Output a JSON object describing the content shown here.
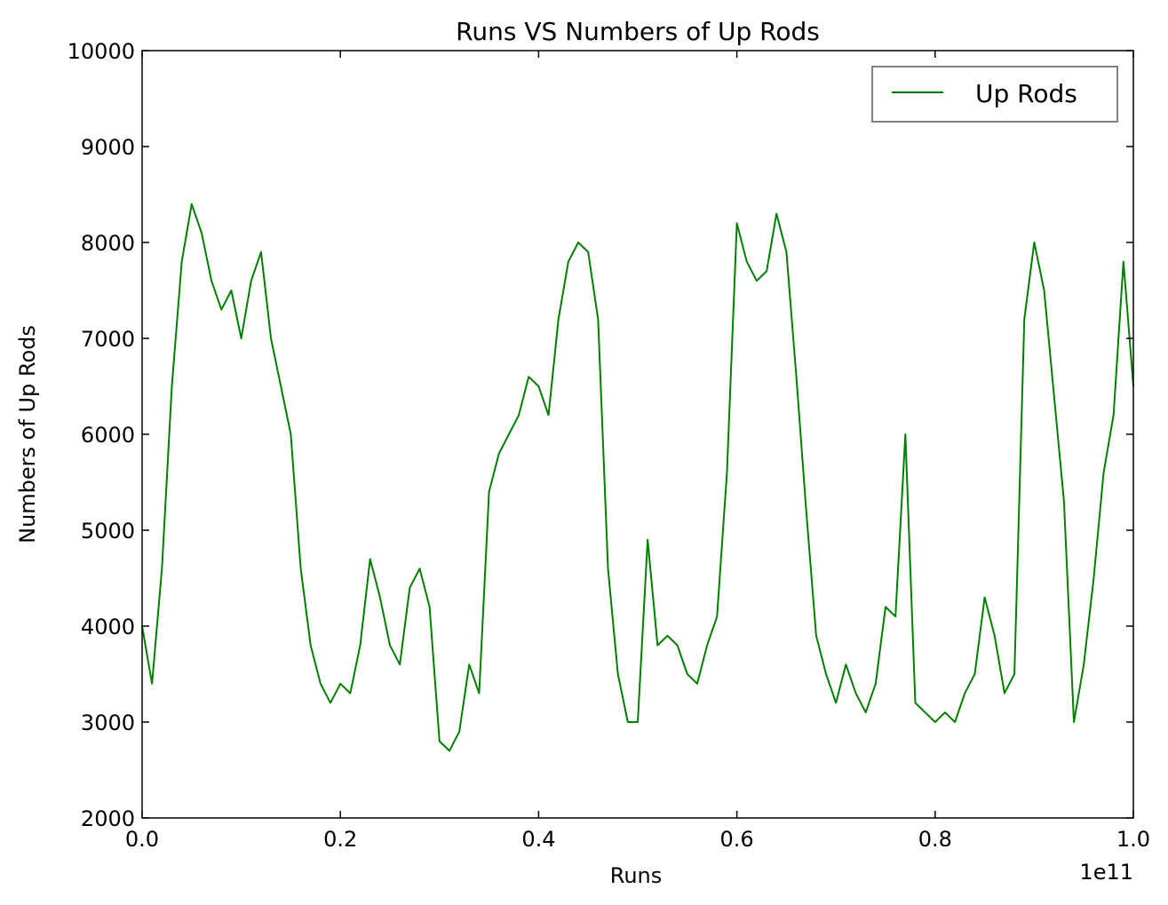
{
  "chart_data": {
    "type": "line",
    "title": "Runs VS Numbers of Up Rods",
    "xlabel": "Runs",
    "ylabel": "Numbers of Up Rods",
    "x_offset_text": "1e11",
    "xlim": [
      0.0,
      1.0
    ],
    "ylim": [
      2000,
      10000
    ],
    "x_ticks": [
      "0.0",
      "0.2",
      "0.4",
      "0.6",
      "0.8",
      "1.0"
    ],
    "y_ticks": [
      "2000",
      "3000",
      "4000",
      "5000",
      "6000",
      "7000",
      "8000",
      "9000",
      "10000"
    ],
    "grid": false,
    "legend_position": "top-right",
    "series": [
      {
        "name": "Up Rods",
        "color": "#008000",
        "x": [
          0.0,
          0.01,
          0.02,
          0.03,
          0.04,
          0.05,
          0.06,
          0.07,
          0.08,
          0.09,
          0.1,
          0.11,
          0.12,
          0.13,
          0.14,
          0.15,
          0.16,
          0.17,
          0.18,
          0.19,
          0.2,
          0.21,
          0.22,
          0.23,
          0.24,
          0.25,
          0.26,
          0.27,
          0.28,
          0.29,
          0.3,
          0.31,
          0.32,
          0.33,
          0.34,
          0.35,
          0.36,
          0.37,
          0.38,
          0.39,
          0.4,
          0.41,
          0.42,
          0.43,
          0.44,
          0.45,
          0.46,
          0.47,
          0.48,
          0.49,
          0.5,
          0.51,
          0.52,
          0.53,
          0.54,
          0.55,
          0.56,
          0.57,
          0.58,
          0.59,
          0.6,
          0.61,
          0.62,
          0.63,
          0.64,
          0.65,
          0.66,
          0.67,
          0.68,
          0.69,
          0.7,
          0.71,
          0.72,
          0.73,
          0.74,
          0.75,
          0.76,
          0.77,
          0.78,
          0.79,
          0.8,
          0.81,
          0.82,
          0.83,
          0.84,
          0.85,
          0.86,
          0.87,
          0.88,
          0.89,
          0.9,
          0.91,
          0.92,
          0.93,
          0.94,
          0.95,
          0.96,
          0.97,
          0.98,
          0.99,
          1.0
        ],
        "y": [
          4000,
          3400,
          4600,
          6500,
          7800,
          8400,
          8100,
          7600,
          7300,
          7500,
          7000,
          7600,
          7900,
          7000,
          6500,
          6000,
          4600,
          3800,
          3400,
          3200,
          3400,
          3300,
          3800,
          4700,
          4300,
          3800,
          3600,
          4400,
          4600,
          4200,
          2800,
          2700,
          2900,
          3600,
          3300,
          5400,
          5800,
          6000,
          6200,
          6600,
          6500,
          6200,
          7200,
          7800,
          8000,
          7900,
          7200,
          4600,
          3500,
          3000,
          3000,
          4900,
          3800,
          3900,
          3800,
          3500,
          3400,
          3800,
          4100,
          5600,
          8200,
          7800,
          7600,
          7700,
          8300,
          7900,
          6600,
          5200,
          3900,
          3500,
          3200,
          3600,
          3300,
          3100,
          3400,
          4200,
          4100,
          6000,
          3200,
          3100,
          3000,
          3100,
          3000,
          3300,
          3500,
          4300,
          3900,
          3300,
          3500,
          7200,
          8000,
          7500,
          6400,
          5300,
          3000,
          3600,
          4500,
          5600,
          6200,
          7800,
          6500
        ]
      }
    ]
  }
}
